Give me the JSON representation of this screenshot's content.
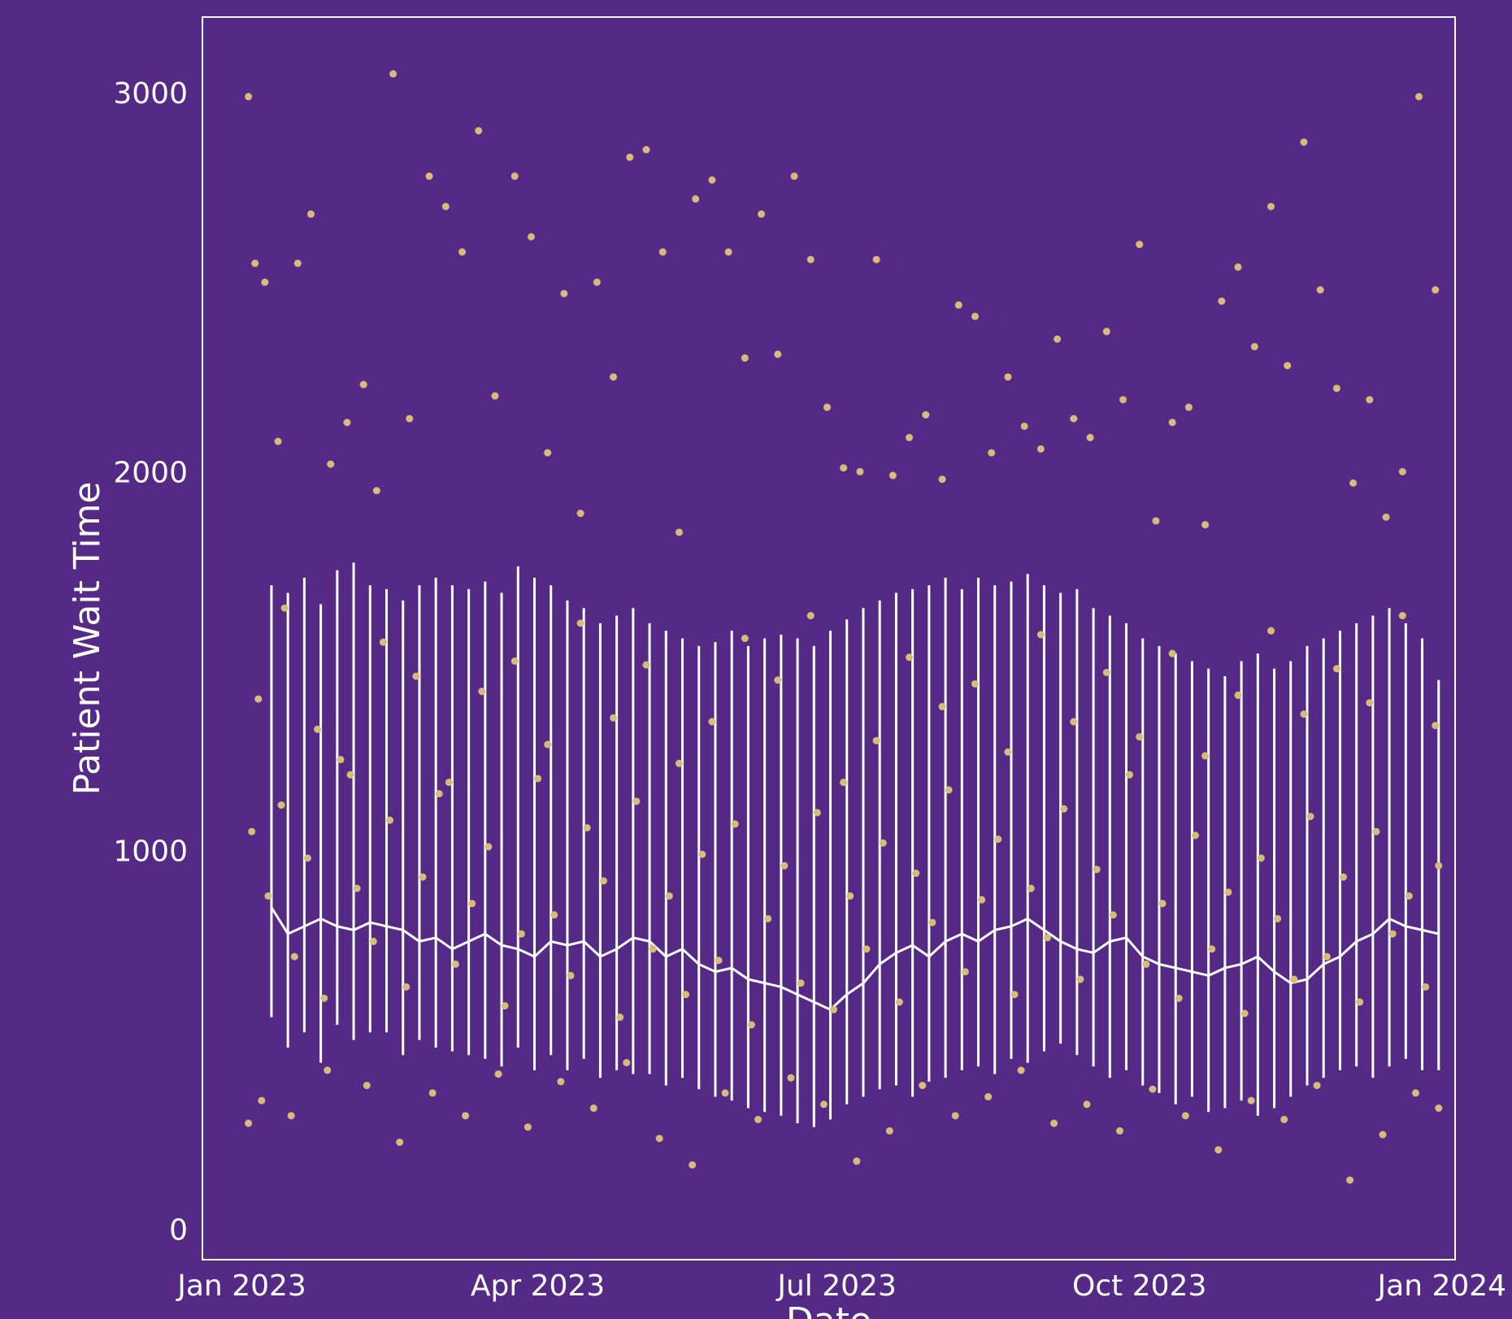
{
  "chart_data": {
    "type": "line",
    "title": "",
    "xlabel": "Date",
    "ylabel": "Patient Wait Time",
    "x_range": [
      "2022-12-20",
      "2024-01-05"
    ],
    "ylim": [
      -80,
      3200
    ],
    "x_ticks": [
      {
        "date": "2023-01-01",
        "label": "Jan 2023"
      },
      {
        "date": "2023-04-01",
        "label": "Apr 2023"
      },
      {
        "date": "2023-07-01",
        "label": "Jul 2023"
      },
      {
        "date": "2023-10-01",
        "label": "Oct 2023"
      },
      {
        "date": "2024-01-01",
        "label": "Jan 2024"
      }
    ],
    "y_ticks": [
      0,
      1000,
      2000,
      3000
    ],
    "grid": false,
    "legend": "none",
    "colors": {
      "background": "#552a87",
      "line": "#ffffff",
      "points": "#d8bb78",
      "frame": "#ffffff"
    },
    "series": [
      {
        "type": "line",
        "x": [
          "2023-01-10",
          "2023-01-15",
          "2023-01-20",
          "2023-01-25",
          "2023-01-30",
          "2023-02-04",
          "2023-02-09",
          "2023-02-14",
          "2023-02-19",
          "2023-02-24",
          "2023-03-01",
          "2023-03-06",
          "2023-03-11",
          "2023-03-16",
          "2023-03-21",
          "2023-03-26",
          "2023-03-31",
          "2023-04-05",
          "2023-04-10",
          "2023-04-15",
          "2023-04-20",
          "2023-04-25",
          "2023-04-30",
          "2023-05-05",
          "2023-05-10",
          "2023-05-15",
          "2023-05-20",
          "2023-05-25",
          "2023-05-30",
          "2023-06-04",
          "2023-06-09",
          "2023-06-14",
          "2023-06-19",
          "2023-06-24",
          "2023-06-29",
          "2023-07-04",
          "2023-07-09",
          "2023-07-14",
          "2023-07-19",
          "2023-07-24",
          "2023-07-29",
          "2023-08-03",
          "2023-08-08",
          "2023-08-13",
          "2023-08-18",
          "2023-08-23",
          "2023-08-28",
          "2023-09-02",
          "2023-09-07",
          "2023-09-12",
          "2023-09-17",
          "2023-09-22",
          "2023-09-27",
          "2023-10-02",
          "2023-10-07",
          "2023-10-12",
          "2023-10-17",
          "2023-10-22",
          "2023-10-27",
          "2023-11-01",
          "2023-11-06",
          "2023-11-11",
          "2023-11-16",
          "2023-11-21",
          "2023-11-26",
          "2023-12-01",
          "2023-12-06",
          "2023-12-11",
          "2023-12-16",
          "2023-12-21",
          "2023-12-26",
          "2023-12-31"
        ],
        "values": [
          850,
          780,
          800,
          820,
          800,
          790,
          810,
          800,
          790,
          760,
          770,
          740,
          760,
          780,
          750,
          740,
          720,
          760,
          750,
          760,
          720,
          740,
          770,
          760,
          720,
          740,
          700,
          680,
          690,
          660,
          650,
          640,
          620,
          600,
          580,
          620,
          650,
          700,
          730,
          750,
          720,
          760,
          780,
          760,
          790,
          800,
          820,
          790,
          760,
          740,
          730,
          760,
          770,
          720,
          700,
          690,
          680,
          670,
          690,
          700,
          720,
          680,
          650,
          660,
          700,
          720,
          760,
          780,
          820,
          800,
          790,
          780
        ],
        "low": [
          560,
          480,
          520,
          440,
          540,
          500,
          520,
          520,
          460,
          500,
          480,
          470,
          460,
          450,
          430,
          480,
          420,
          460,
          420,
          450,
          400,
          420,
          410,
          410,
          380,
          400,
          370,
          350,
          340,
          320,
          310,
          300,
          280,
          270,
          290,
          330,
          350,
          370,
          380,
          350,
          390,
          400,
          420,
          430,
          410,
          450,
          440,
          470,
          490,
          460,
          430,
          400,
          420,
          380,
          360,
          330,
          350,
          310,
          320,
          340,
          300,
          320,
          350,
          380,
          400,
          420,
          430,
          400,
          430,
          450,
          420,
          420
        ],
        "high": [
          1700,
          1680,
          1720,
          1650,
          1740,
          1760,
          1700,
          1690,
          1660,
          1700,
          1720,
          1700,
          1690,
          1710,
          1680,
          1750,
          1720,
          1700,
          1660,
          1640,
          1600,
          1620,
          1640,
          1600,
          1580,
          1560,
          1540,
          1550,
          1580,
          1540,
          1560,
          1570,
          1560,
          1540,
          1580,
          1610,
          1640,
          1660,
          1680,
          1690,
          1700,
          1720,
          1690,
          1720,
          1700,
          1710,
          1730,
          1700,
          1680,
          1690,
          1640,
          1620,
          1600,
          1560,
          1540,
          1520,
          1500,
          1480,
          1460,
          1500,
          1520,
          1480,
          1500,
          1540,
          1560,
          1580,
          1600,
          1620,
          1640,
          1600,
          1560,
          1450
        ]
      },
      {
        "type": "scatter",
        "x": [
          "2023-01-03",
          "2023-01-05",
          "2023-01-08",
          "2023-01-12",
          "2023-01-18",
          "2023-01-22",
          "2023-01-28",
          "2023-02-02",
          "2023-02-07",
          "2023-02-11",
          "2023-02-16",
          "2023-02-21",
          "2023-02-27",
          "2023-03-04",
          "2023-03-09",
          "2023-03-14",
          "2023-03-19",
          "2023-03-25",
          "2023-03-30",
          "2023-04-04",
          "2023-04-09",
          "2023-04-14",
          "2023-04-19",
          "2023-04-24",
          "2023-04-29",
          "2023-05-04",
          "2023-05-09",
          "2023-05-14",
          "2023-05-19",
          "2023-05-24",
          "2023-05-29",
          "2023-06-03",
          "2023-06-08",
          "2023-06-13",
          "2023-06-18",
          "2023-06-23",
          "2023-06-28",
          "2023-07-03",
          "2023-07-08",
          "2023-07-13",
          "2023-07-18",
          "2023-07-23",
          "2023-07-28",
          "2023-08-02",
          "2023-08-07",
          "2023-08-12",
          "2023-08-17",
          "2023-08-22",
          "2023-08-27",
          "2023-09-01",
          "2023-09-06",
          "2023-09-11",
          "2023-09-16",
          "2023-09-21",
          "2023-09-26",
          "2023-10-01",
          "2023-10-06",
          "2023-10-11",
          "2023-10-16",
          "2023-10-21",
          "2023-10-26",
          "2023-10-31",
          "2023-11-05",
          "2023-11-10",
          "2023-11-15",
          "2023-11-20",
          "2023-11-25",
          "2023-11-30",
          "2023-12-05",
          "2023-12-10",
          "2023-12-15",
          "2023-12-20",
          "2023-12-25",
          "2023-12-30",
          "2023-01-06",
          "2023-01-14",
          "2023-01-24",
          "2023-02-03",
          "2023-02-13",
          "2023-02-23",
          "2023-03-05",
          "2023-03-15",
          "2023-03-25",
          "2023-04-04",
          "2023-04-14",
          "2023-04-24",
          "2023-05-04",
          "2023-05-14",
          "2023-05-24",
          "2023-06-03",
          "2023-06-13",
          "2023-06-23",
          "2023-07-03",
          "2023-07-13",
          "2023-07-23",
          "2023-08-02",
          "2023-08-12",
          "2023-08-22",
          "2023-09-01",
          "2023-09-11",
          "2023-09-21",
          "2023-10-01",
          "2023-10-11",
          "2023-10-21",
          "2023-10-31",
          "2023-11-10",
          "2023-11-20",
          "2023-11-30",
          "2023-12-10",
          "2023-12-20",
          "2023-12-30"
        ],
        "values": [
          2990,
          2550,
          2500,
          2080,
          2550,
          2680,
          2020,
          2130,
          2230,
          1950,
          3050,
          2140,
          2780,
          2700,
          2580,
          2900,
          2200,
          2780,
          2620,
          2050,
          2470,
          1890,
          2500,
          2250,
          2830,
          2850,
          2580,
          1840,
          2720,
          2770,
          2580,
          2300,
          2680,
          2310,
          2780,
          2560,
          2170,
          2010,
          2000,
          2560,
          1990,
          2090,
          2150,
          1980,
          2440,
          2410,
          2050,
          2250,
          2120,
          2060,
          2350,
          2140,
          2090,
          2370,
          2190,
          2600,
          1870,
          2130,
          2170,
          1860,
          2450,
          2540,
          2330,
          2700,
          2280,
          2870,
          2480,
          2220,
          1970,
          2190,
          1880,
          2000,
          2990,
          2480,
          1400,
          1640,
          1320,
          1200,
          1550,
          1460,
          1180,
          1420,
          1500,
          1280,
          1600,
          1350,
          1490,
          1230,
          1340,
          1560,
          1450,
          1620,
          1180,
          1290,
          1510,
          1380,
          1440,
          1260,
          1570,
          1340,
          1470,
          1300,
          1520,
          1250,
          1410,
          1580,
          1360,
          1480,
          1390,
          1620,
          1330
        ]
      },
      {
        "type": "scatter",
        "x": [
          "2023-01-04",
          "2023-01-09",
          "2023-01-13",
          "2023-01-17",
          "2023-01-21",
          "2023-01-26",
          "2023-01-31",
          "2023-02-05",
          "2023-02-10",
          "2023-02-15",
          "2023-02-20",
          "2023-02-25",
          "2023-03-02",
          "2023-03-07",
          "2023-03-12",
          "2023-03-17",
          "2023-03-22",
          "2023-03-27",
          "2023-04-01",
          "2023-04-06",
          "2023-04-11",
          "2023-04-16",
          "2023-04-21",
          "2023-04-26",
          "2023-05-01",
          "2023-05-06",
          "2023-05-11",
          "2023-05-16",
          "2023-05-21",
          "2023-05-26",
          "2023-05-31",
          "2023-06-05",
          "2023-06-10",
          "2023-06-15",
          "2023-06-20",
          "2023-06-25",
          "2023-06-30",
          "2023-07-05",
          "2023-07-10",
          "2023-07-15",
          "2023-07-20",
          "2023-07-25",
          "2023-07-30",
          "2023-08-04",
          "2023-08-09",
          "2023-08-14",
          "2023-08-19",
          "2023-08-24",
          "2023-08-29",
          "2023-09-03",
          "2023-09-08",
          "2023-09-13",
          "2023-09-18",
          "2023-09-23",
          "2023-09-28",
          "2023-10-03",
          "2023-10-08",
          "2023-10-13",
          "2023-10-18",
          "2023-10-23",
          "2023-10-28",
          "2023-11-02",
          "2023-11-07",
          "2023-11-12",
          "2023-11-17",
          "2023-11-22",
          "2023-11-27",
          "2023-12-02",
          "2023-12-07",
          "2023-12-12",
          "2023-12-17",
          "2023-12-22",
          "2023-12-27",
          "2023-12-31"
        ],
        "values": [
          1050,
          880,
          1120,
          720,
          980,
          610,
          1240,
          900,
          760,
          1080,
          640,
          930,
          1150,
          700,
          860,
          1010,
          590,
          780,
          1190,
          830,
          670,
          1060,
          920,
          560,
          1130,
          740,
          880,
          620,
          990,
          710,
          1070,
          540,
          820,
          960,
          650,
          1100,
          580,
          880,
          740,
          1020,
          600,
          940,
          810,
          1160,
          680,
          870,
          1030,
          620,
          900,
          770,
          1110,
          660,
          950,
          830,
          1200,
          700,
          860,
          610,
          1040,
          740,
          890,
          570,
          980,
          820,
          660,
          1090,
          720,
          930,
          600,
          1050,
          780,
          880,
          640,
          960
        ]
      },
      {
        "type": "scatter",
        "x": [
          "2023-01-03",
          "2023-01-07",
          "2023-01-16",
          "2023-01-27",
          "2023-02-08",
          "2023-02-18",
          "2023-02-28",
          "2023-03-10",
          "2023-03-20",
          "2023-03-29",
          "2023-04-08",
          "2023-04-18",
          "2023-04-28",
          "2023-05-08",
          "2023-05-18",
          "2023-05-28",
          "2023-06-07",
          "2023-06-17",
          "2023-06-27",
          "2023-07-07",
          "2023-07-17",
          "2023-07-27",
          "2023-08-06",
          "2023-08-16",
          "2023-08-26",
          "2023-09-05",
          "2023-09-15",
          "2023-09-25",
          "2023-10-05",
          "2023-10-15",
          "2023-10-25",
          "2023-11-04",
          "2023-11-14",
          "2023-11-24",
          "2023-12-04",
          "2023-12-14",
          "2023-12-24",
          "2023-12-31"
        ],
        "values": [
          280,
          340,
          300,
          420,
          380,
          230,
          360,
          300,
          410,
          270,
          390,
          320,
          440,
          240,
          170,
          360,
          290,
          400,
          330,
          180,
          260,
          380,
          300,
          350,
          420,
          280,
          330,
          260,
          370,
          300,
          210,
          340,
          290,
          380,
          130,
          250,
          360,
          320
        ]
      }
    ]
  }
}
